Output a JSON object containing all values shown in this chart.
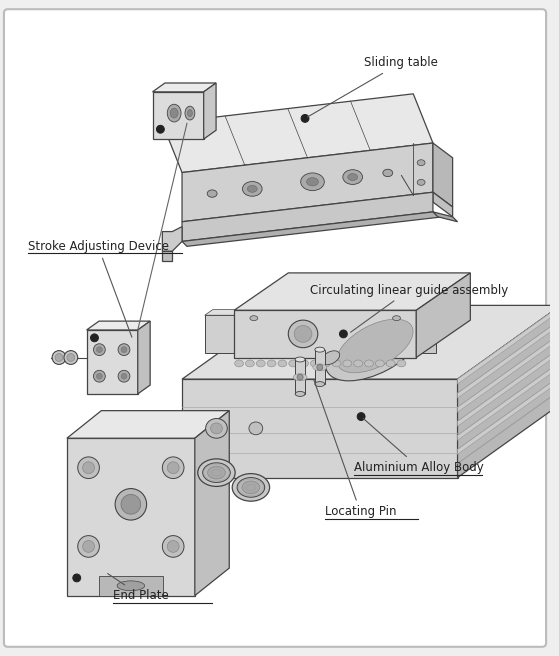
{
  "bg_color": "#efefef",
  "border_color": "#bbbbbb",
  "lc": "#444444",
  "lc_light": "#888888",
  "fill_top": "#e8e8e8",
  "fill_front": "#d0d0d0",
  "fill_side": "#b8b8b8",
  "fill_white": "#f5f5f5",
  "fill_dark": "#999999",
  "text_color": "#222222",
  "labels": {
    "sliding_table": "Sliding table",
    "stroke_adjusting": "Stroke Adjusting Device",
    "circulating": "Circulating linear guide assembly",
    "aluminium": "Aluminium Alloy Body",
    "locating_pin": "Locating Pin",
    "end_plate": "End Plate"
  },
  "figsize": [
    5.59,
    6.56
  ],
  "dpi": 100
}
